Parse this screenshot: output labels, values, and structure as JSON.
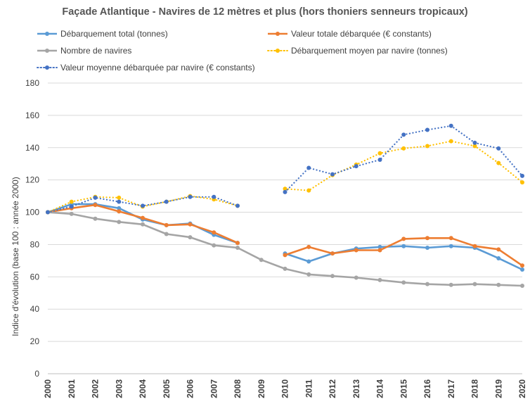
{
  "chart_data": {
    "type": "line",
    "title": "Façade Atlantique - Navires de 12 mètres et plus (hors thoniers senneurs tropicaux)",
    "xlabel": "",
    "ylabel": "Indice d'évolution (base 100 : année 2000)",
    "ylim": [
      0,
      180
    ],
    "yticks": [
      "0",
      "20",
      "40",
      "60",
      "80",
      "100",
      "120",
      "140",
      "160",
      "180"
    ],
    "categories": [
      "2000",
      "2001",
      "2002",
      "2003",
      "2004",
      "2005",
      "2006",
      "2007",
      "2008",
      "2009",
      "2010",
      "2011",
      "2012",
      "2013",
      "2014",
      "2015",
      "2016",
      "2017",
      "2018",
      "2019",
      "2020"
    ],
    "grid": true,
    "legend_position": "top",
    "series": [
      {
        "name": "Débarquement total (tonnes)",
        "color": "#5B9BD5",
        "style": "solid",
        "values": [
          100,
          105,
          105,
          102.5,
          95.5,
          92,
          93,
          86,
          81,
          null,
          74.5,
          69.5,
          74.5,
          77.5,
          78.5,
          79,
          78,
          79,
          78,
          71.5,
          64.5
        ]
      },
      {
        "name": "Valeur totale débarquée (€ constants)",
        "color": "#ED7D31",
        "style": "solid",
        "values": [
          100,
          102.5,
          104.5,
          100.5,
          96.5,
          92,
          92.5,
          87.5,
          81,
          null,
          73.5,
          78.5,
          74.5,
          76.5,
          76.5,
          83.5,
          84,
          84,
          79,
          77,
          67
        ]
      },
      {
        "name": "Nombre de navires",
        "color": "#A5A5A5",
        "style": "solid",
        "values": [
          100,
          99,
          96,
          94,
          92.5,
          86.5,
          84.5,
          79.5,
          78,
          70.5,
          65,
          61.5,
          60.5,
          59.5,
          58,
          56.5,
          55.5,
          55,
          55.5,
          55,
          54.5
        ]
      },
      {
        "name": "Débarquement moyen par navire (tonnes)",
        "color": "#FFC000",
        "style": "dotted",
        "values": [
          100,
          106.5,
          109.5,
          109,
          103.5,
          106.5,
          110,
          108,
          104,
          null,
          114.5,
          113.5,
          123,
          129.5,
          136.5,
          139.5,
          141,
          144,
          141,
          130.5,
          118.5
        ]
      },
      {
        "name": "Valeur moyenne débarquée par navire (€ constants)",
        "color": "#4472C4",
        "style": "dotted",
        "values": [
          100,
          103.5,
          109,
          106.5,
          104,
          106.5,
          109.5,
          109.5,
          104,
          null,
          112.5,
          127.5,
          123.5,
          128.5,
          132.5,
          148,
          151,
          153.5,
          143,
          139.5,
          122.5
        ]
      }
    ]
  }
}
